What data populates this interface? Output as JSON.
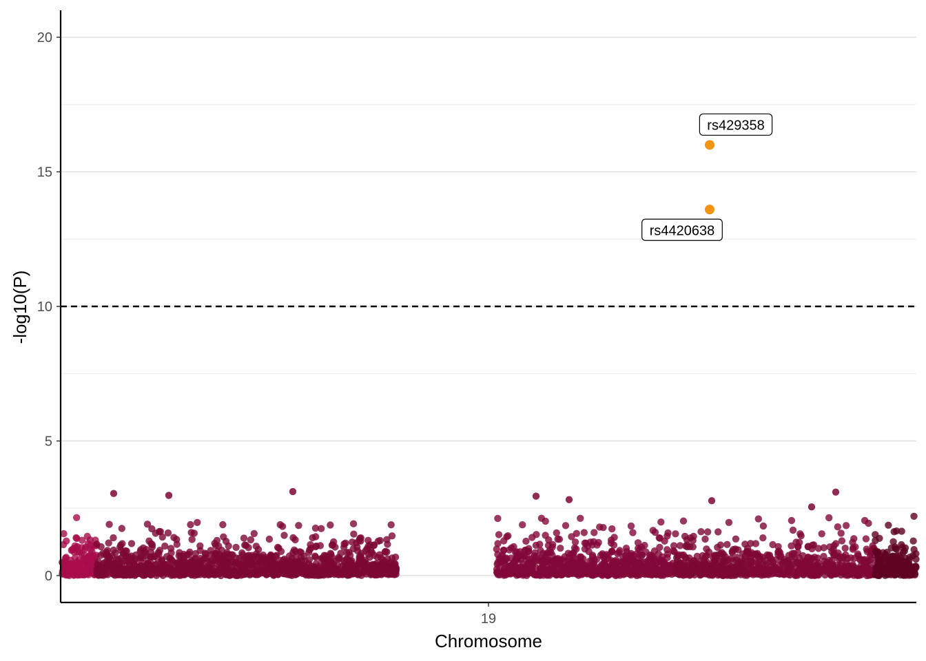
{
  "chart_data": {
    "type": "scatter",
    "title": "",
    "xlabel": "Chromosome",
    "ylabel": "-log10(P)",
    "x_ticks": [
      "19"
    ],
    "y_ticks": [
      0,
      5,
      10,
      15,
      20
    ],
    "ylim": [
      -1,
      21
    ],
    "grid": "horizontal major and minor",
    "threshold": 10,
    "colors": {
      "hit": "#f39414",
      "threshold_line": "#000000",
      "grid_major": "#d9d9d9",
      "grid_minor": "#ececec",
      "segments": [
        "#a80d4b",
        "#7d0733",
        "#820839",
        "#7d0733",
        "#800836",
        "#5f0122"
      ]
    },
    "highlighted": [
      {
        "snp": "rs429358",
        "value": 16.0,
        "label_side": "above"
      },
      {
        "snp": "rs4420638",
        "value": 13.6,
        "label_side": "below"
      }
    ],
    "background_points": {
      "description_values": "approx. 2800 variants on chromosome 19 with -log10(P) between 0 and 3.2",
      "max_value": 3.15,
      "notable": [
        3.05,
        2.98,
        3.12,
        2.95,
        2.82,
        2.78,
        3.1,
        2.55
      ]
    }
  }
}
